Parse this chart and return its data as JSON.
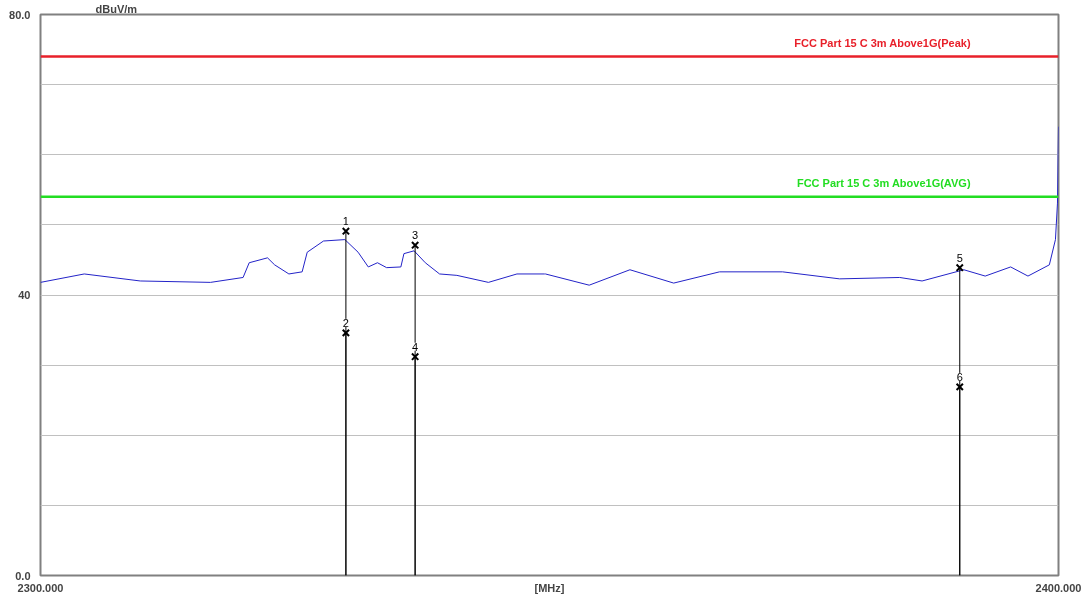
{
  "chart_data": {
    "type": "line",
    "xlabel": "[MHz]",
    "ylabel": "dBuV/m",
    "xlim": [
      2300,
      2400
    ],
    "xticks": [
      {
        "value": 2300,
        "label": "2300.000"
      },
      {
        "value": 2400,
        "label": "2400.000"
      }
    ],
    "ylim": [
      0,
      80
    ],
    "yticks": [
      {
        "value": 0,
        "label": "0.0"
      },
      {
        "value": 10,
        "label": null
      },
      {
        "value": 20,
        "label": null
      },
      {
        "value": 30,
        "label": null
      },
      40,
      {
        "value": 50,
        "label": null
      },
      {
        "value": 60,
        "label": null
      },
      {
        "value": 70,
        "label": null
      },
      {
        "value": 80,
        "label": "80.0"
      }
    ],
    "grid": "y",
    "line_style": "solid",
    "annotations": [
      {
        "text": "1",
        "x": 2330.0,
        "y": 49.1
      },
      {
        "text": "2",
        "x": 2330.0,
        "y": 34.6
      },
      {
        "text": "3",
        "x": 2336.8,
        "y": 47.1
      },
      {
        "text": "4",
        "x": 2336.8,
        "y": 31.2
      },
      {
        "text": "5",
        "x": 2390.3,
        "y": 43.9
      },
      {
        "text": "6",
        "x": 2390.3,
        "y": 26.9
      }
    ],
    "series": [
      {
        "color": "#2323c8",
        "marker": "none",
        "x": [
          2300.0,
          2304.3,
          2309.8,
          2316.7,
          2319.9,
          2320.5,
          2322.3,
          2323.0,
          2324.4,
          2325.7,
          2326.2,
          2327.8,
          2329.9,
          2331.2,
          2332.2,
          2333.1,
          2334.0,
          2335.4,
          2335.7,
          2336.7,
          2337.8,
          2339.2,
          2340.9,
          2344.0,
          2346.8,
          2349.5,
          2349.6,
          2353.9,
          2357.9,
          2362.2,
          2366.7,
          2372.9,
          2378.5,
          2384.4,
          2386.6,
          2390.7,
          2392.8,
          2395.3,
          2397.0,
          2399.1,
          2399.7,
          2399.9,
          2400.0
        ],
        "values": [
          41.8,
          43.0,
          42.0,
          41.8,
          42.5,
          44.6,
          45.3,
          44.3,
          43.0,
          43.3,
          46.1,
          47.7,
          47.9,
          46.1,
          44.0,
          44.6,
          43.9,
          44.0,
          45.9,
          46.3,
          44.6,
          43.0,
          42.8,
          41.8,
          43.0,
          43.0,
          43.0,
          41.4,
          43.6,
          41.7,
          43.3,
          43.3,
          42.3,
          42.5,
          42.0,
          43.6,
          42.7,
          44.0,
          42.7,
          44.3,
          47.9,
          53.1,
          64.0
        ]
      },
      {
        "type": "lollipop",
        "color": "#000000",
        "marker": "cross",
        "x": [
          2330.0,
          2330.0,
          2336.8,
          2336.8,
          2390.3,
          2390.3
        ],
        "values": [
          49.1,
          34.6,
          47.1,
          31.2,
          43.9,
          26.9
        ]
      }
    ],
    "ref_lines": [
      {
        "axis": "y",
        "value": 74,
        "label": "FCC Part 15 C 3m  Above1G(Peak)",
        "color": "#e8202a",
        "line_style": "solid"
      },
      {
        "axis": "y",
        "value": 54,
        "label": "FCC Part 15 C 3m  Above1G(AVG)",
        "color": "#22dd22",
        "line_style": "solid"
      }
    ]
  }
}
